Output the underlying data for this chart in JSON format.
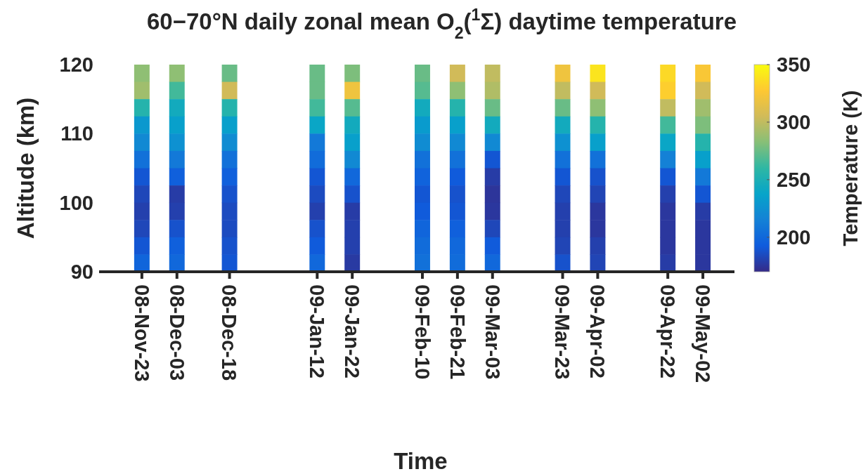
{
  "chart_data": {
    "type": "heatmap",
    "title": "60−70°N daily zonal mean O$_{2}$($^{1}$Σ) daytime temperature",
    "xlabel": "Time",
    "ylabel": "Altitude (km)",
    "clabel": "Temperature (K)",
    "categories": [
      null,
      null,
      "08-Nov-23",
      null,
      "08-Dec-03",
      null,
      null,
      "08-Dec-18",
      null,
      null,
      null,
      null,
      "09-Jan-12",
      null,
      "09-Jan-22",
      null,
      null,
      null,
      "09-Feb-10",
      null,
      "09-Feb-21",
      null,
      "09-Mar-03",
      null,
      null,
      null,
      "09-Mar-23",
      null,
      "09-Apr-02",
      null,
      null,
      null,
      "09-Apr-22",
      null,
      "09-May-02",
      null
    ],
    "ylim": [
      90,
      120
    ],
    "yticks": [
      90,
      100,
      110,
      120
    ],
    "clim": [
      170,
      350
    ],
    "cticks": [
      200,
      250,
      300,
      350
    ],
    "cells": [
      [
        null,
        null,
        285,
        null,
        285,
        null,
        null,
        275,
        null,
        null,
        null,
        null,
        275,
        null,
        280,
        null,
        null,
        null,
        275,
        null,
        305,
        null,
        300,
        null,
        null,
        null,
        320,
        null,
        340,
        null,
        null,
        null,
        335,
        null,
        325,
        null
      ],
      [
        null,
        null,
        290,
        null,
        265,
        null,
        null,
        305,
        null,
        null,
        null,
        null,
        275,
        null,
        320,
        null,
        null,
        null,
        270,
        null,
        285,
        null,
        295,
        null,
        null,
        null,
        300,
        null,
        305,
        null,
        null,
        null,
        330,
        null,
        305,
        null
      ],
      [
        null,
        null,
        255,
        null,
        245,
        null,
        null,
        255,
        null,
        null,
        null,
        null,
        265,
        null,
        270,
        null,
        null,
        null,
        245,
        null,
        255,
        null,
        275,
        null,
        null,
        null,
        275,
        null,
        285,
        null,
        null,
        null,
        300,
        null,
        290,
        null
      ],
      [
        null,
        null,
        230,
        null,
        235,
        null,
        null,
        235,
        null,
        null,
        null,
        null,
        240,
        null,
        245,
        null,
        null,
        null,
        232,
        null,
        235,
        null,
        245,
        null,
        null,
        null,
        245,
        null,
        255,
        null,
        null,
        null,
        265,
        null,
        280,
        null
      ],
      [
        null,
        null,
        220,
        null,
        225,
        null,
        null,
        222,
        null,
        null,
        null,
        null,
        210,
        null,
        235,
        null,
        null,
        null,
        222,
        null,
        220,
        null,
        220,
        null,
        null,
        null,
        225,
        null,
        235,
        null,
        null,
        null,
        240,
        null,
        255,
        null
      ],
      [
        null,
        null,
        205,
        null,
        210,
        null,
        null,
        205,
        null,
        null,
        null,
        null,
        202,
        null,
        220,
        null,
        null,
        null,
        205,
        null,
        205,
        null,
        190,
        null,
        null,
        null,
        205,
        null,
        205,
        null,
        null,
        null,
        215,
        null,
        235,
        null
      ],
      [
        null,
        null,
        190,
        null,
        195,
        null,
        null,
        195,
        null,
        null,
        null,
        null,
        190,
        null,
        200,
        null,
        null,
        null,
        197,
        null,
        192,
        null,
        178,
        null,
        null,
        null,
        190,
        null,
        188,
        null,
        null,
        null,
        190,
        null,
        210,
        null
      ],
      [
        null,
        null,
        183,
        null,
        178,
        null,
        null,
        188,
        null,
        null,
        null,
        null,
        185,
        null,
        188,
        null,
        null,
        null,
        190,
        null,
        188,
        null,
        175,
        null,
        null,
        null,
        183,
        null,
        182,
        null,
        null,
        null,
        180,
        null,
        190,
        null
      ],
      [
        null,
        null,
        180,
        null,
        180,
        null,
        null,
        185,
        null,
        null,
        null,
        null,
        180,
        null,
        178,
        null,
        null,
        null,
        192,
        null,
        190,
        null,
        176,
        null,
        null,
        null,
        180,
        null,
        176,
        null,
        null,
        null,
        176,
        null,
        178,
        null
      ],
      [
        null,
        null,
        183,
        null,
        188,
        null,
        null,
        185,
        null,
        null,
        null,
        null,
        188,
        null,
        180,
        null,
        null,
        null,
        198,
        null,
        195,
        null,
        183,
        null,
        null,
        null,
        180,
        null,
        176,
        null,
        null,
        null,
        176,
        null,
        176,
        null
      ],
      [
        null,
        null,
        190,
        null,
        195,
        null,
        null,
        188,
        null,
        null,
        null,
        null,
        192,
        null,
        180,
        null,
        null,
        null,
        202,
        null,
        200,
        null,
        192,
        null,
        null,
        null,
        182,
        null,
        180,
        null,
        null,
        null,
        176,
        null,
        176,
        null
      ],
      [
        null,
        null,
        198,
        null,
        200,
        null,
        null,
        190,
        null,
        null,
        null,
        null,
        200,
        null,
        177,
        null,
        null,
        null,
        205,
        null,
        202,
        null,
        200,
        null,
        null,
        null,
        188,
        null,
        182,
        null,
        null,
        null,
        178,
        null,
        176,
        null
      ]
    ]
  }
}
